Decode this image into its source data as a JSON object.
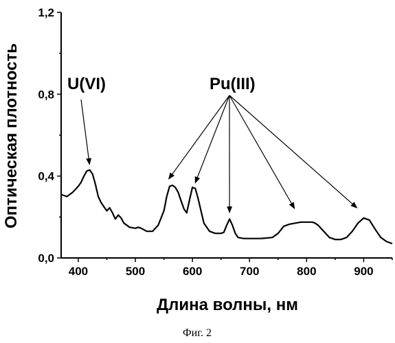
{
  "chart_data": {
    "type": "line",
    "title": "",
    "xlabel": "Длина волны, нм",
    "ylabel": "Оптическая плотность",
    "xlim": [
      370,
      950
    ],
    "ylim": [
      0,
      1.2
    ],
    "x_ticks": [
      400,
      500,
      600,
      700,
      800,
      900
    ],
    "x_tick_labels": [
      "400",
      "500",
      "600",
      "700",
      "800",
      "900"
    ],
    "y_ticks": [
      0,
      0.4,
      0.8,
      1.2
    ],
    "y_tick_labels": [
      "0,0",
      "0,4",
      "0,8",
      "1,2"
    ],
    "grid": false,
    "series": [
      {
        "x": [
          370,
          380,
          390,
          400,
          405,
          410,
          415,
          420,
          425,
          430,
          435,
          440,
          445,
          450,
          455,
          460,
          465,
          470,
          475,
          480,
          490,
          500,
          505,
          510,
          520,
          530,
          540,
          550,
          555,
          560,
          565,
          570,
          575,
          580,
          585,
          590,
          595,
          600,
          605,
          610,
          615,
          620,
          630,
          640,
          650,
          655,
          660,
          665,
          670,
          675,
          680,
          690,
          700,
          720,
          740,
          750,
          760,
          770,
          780,
          790,
          800,
          810,
          815,
          820,
          830,
          840,
          850,
          860,
          870,
          880,
          890,
          900,
          910,
          920,
          930,
          940,
          950
        ],
        "values": [
          0.31,
          0.3,
          0.32,
          0.35,
          0.37,
          0.4,
          0.425,
          0.43,
          0.41,
          0.36,
          0.3,
          0.27,
          0.25,
          0.23,
          0.245,
          0.22,
          0.19,
          0.21,
          0.195,
          0.17,
          0.15,
          0.145,
          0.15,
          0.145,
          0.13,
          0.13,
          0.16,
          0.23,
          0.3,
          0.35,
          0.355,
          0.345,
          0.32,
          0.28,
          0.24,
          0.22,
          0.285,
          0.345,
          0.34,
          0.29,
          0.23,
          0.17,
          0.13,
          0.12,
          0.12,
          0.125,
          0.16,
          0.19,
          0.16,
          0.12,
          0.1,
          0.095,
          0.095,
          0.095,
          0.1,
          0.12,
          0.155,
          0.165,
          0.17,
          0.175,
          0.175,
          0.175,
          0.17,
          0.16,
          0.13,
          0.1,
          0.09,
          0.09,
          0.1,
          0.13,
          0.17,
          0.195,
          0.185,
          0.14,
          0.1,
          0.08,
          0.07
        ]
      }
    ],
    "annotations": [
      {
        "label": "U(VI)",
        "targets": [
          {
            "x": 420,
            "y": 0.43
          }
        ]
      },
      {
        "label": "Pu(III)",
        "targets": [
          {
            "x": 557,
            "y": 0.36
          },
          {
            "x": 604,
            "y": 0.34
          },
          {
            "x": 665,
            "y": 0.195
          },
          {
            "x": 780,
            "y": 0.215
          },
          {
            "x": 890,
            "y": 0.22
          }
        ]
      }
    ]
  },
  "caption": "Фиг. 2"
}
